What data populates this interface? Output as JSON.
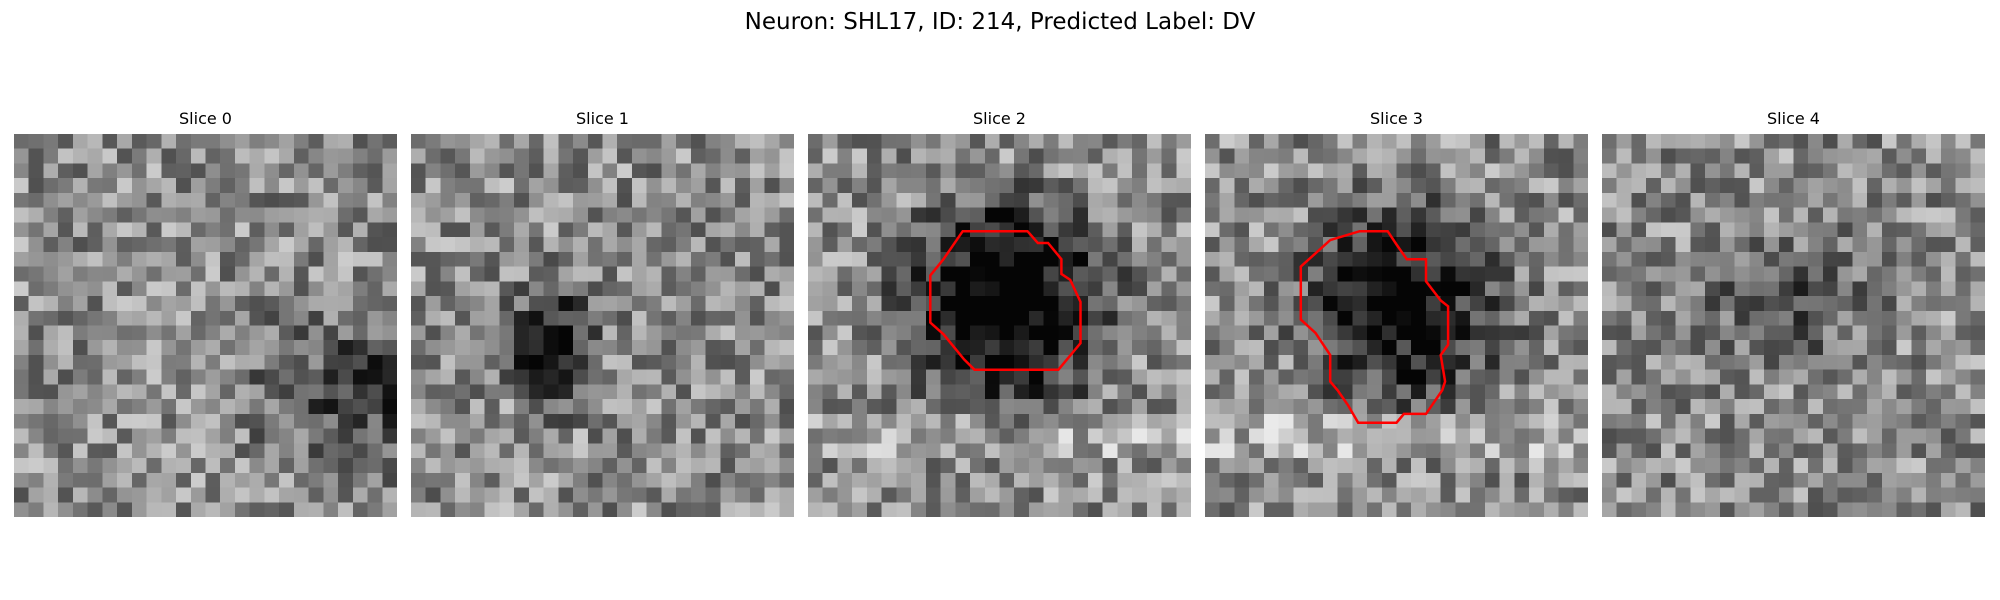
{
  "figure": {
    "title": "Neuron: SHL17, ID: 214, Predicted Label: DV"
  },
  "panels": [
    {
      "title": "Slice 0",
      "outline_color": "",
      "has_outline": false,
      "dark_blob": {
        "cx": 24,
        "cy": 17,
        "rx": 7,
        "ry": 5,
        "strength": 0.3
      },
      "noise_seed": 11
    },
    {
      "title": "Slice 1",
      "outline_color": "",
      "has_outline": false,
      "dark_blob": {
        "cx": 9,
        "cy": 14,
        "rx": 2.5,
        "ry": 4,
        "strength": 0.55
      },
      "noise_seed": 23
    },
    {
      "title": "Slice 2",
      "outline_color": "#ff0000",
      "has_outline": true,
      "dark_blob": {
        "cx": 13,
        "cy": 11,
        "rx": 6,
        "ry": 6,
        "strength": 0.75
      },
      "noise_seed": 37
    },
    {
      "title": "Slice 3",
      "outline_color": "#ff0000",
      "has_outline": true,
      "dark_blob": {
        "cx": 13,
        "cy": 11,
        "rx": 6,
        "ry": 6,
        "strength": 0.6
      },
      "noise_seed": 41
    },
    {
      "title": "Slice 4",
      "outline_color": "",
      "has_outline": false,
      "dark_blob": {
        "cx": 12,
        "cy": 11,
        "rx": 5,
        "ry": 4,
        "strength": 0.25
      },
      "noise_seed": 59
    }
  ]
}
